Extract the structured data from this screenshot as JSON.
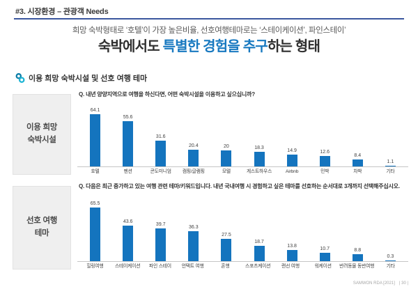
{
  "header": {
    "kicker": "#3. 시장환경 – 관광객 Needs",
    "subtitle": "희망 숙박형태로 ‘호텔’이 가장 높은비율, 선호여행테마로는 ‘스테이케이션’, 파인스테이’",
    "title_prefix": "숙박에서도 ",
    "title_highlight": "특별한 경험을 추구",
    "title_suffix": "하는 형태"
  },
  "section": {
    "title": "이용 희망 숙박시설 및 선호 여행 테마",
    "icon": "linked-circles-icon"
  },
  "charts": [
    {
      "side_label_line1": "이용 희망",
      "side_label_line2": "숙박시설"
    },
    {
      "side_label_line1": "선호 여행",
      "side_label_line2": "테마"
    }
  ],
  "chart_data": [
    {
      "type": "bar",
      "title": "이용 희망 숙박시설",
      "question": "Q. 내년 양양지역으로 여행을 하신다면, 어떤 숙박시설을 이용하고 싶으십니까?",
      "categories": [
        "호텔",
        "펜션",
        "콘도미니엄",
        "캠핑/글램핑",
        "모텔",
        "게스트하우스",
        "Airbnb",
        "민박",
        "차박",
        "기타"
      ],
      "values": [
        64.1,
        55.6,
        31.6,
        20.4,
        20,
        18.3,
        14.9,
        12.6,
        8.4,
        1.1
      ],
      "xlabel": "",
      "ylabel": "",
      "ylim": [
        0,
        70
      ],
      "grid": false,
      "legend": false,
      "bar_color": "#1474BE"
    },
    {
      "type": "bar",
      "title": "선호 여행 테마",
      "question": "Q. 다음은 최근 증가하고 있는 여행 관련 테마/키워드입니다. 내년 국내여행 시 경험하고 싶은 테마를 선호하는 순서대로 3개까지 선택해주십시오.",
      "categories": [
        "힐링여행",
        "스테이케이션",
        "파인 스테이",
        "언택트 여행",
        "혼행",
        "스포츠케이션",
        "랜선 여행",
        "워케이션",
        "반려동물 동반여행",
        "기타"
      ],
      "values": [
        65.5,
        43.6,
        39.7,
        36.3,
        27.5,
        18.7,
        13.8,
        10.7,
        8.8,
        0.3
      ],
      "xlabel": "",
      "ylabel": "",
      "ylim": [
        0,
        70
      ],
      "grid": false,
      "legend": false,
      "bar_color": "#1474BE"
    }
  ],
  "footer": {
    "source": "SAMWON RDA [2021]",
    "page": "| 30 |"
  },
  "colors": {
    "accent_blue": "#1879C0",
    "bar_blue": "#1474BE",
    "underline_navy": "#3A569E",
    "icon_teal": "#1CB4D4",
    "icon_dark_teal": "#0B7EA8"
  }
}
